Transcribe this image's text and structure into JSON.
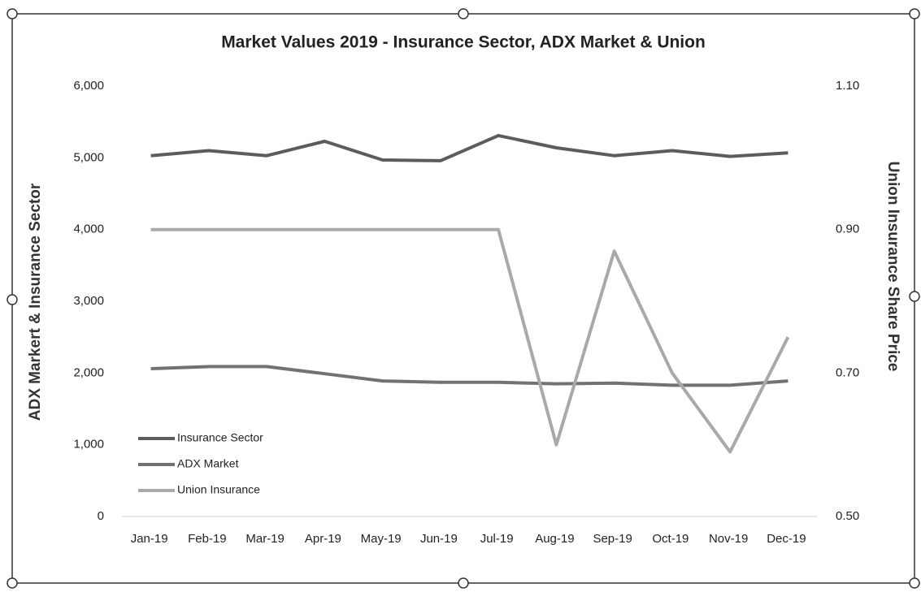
{
  "chart_data": {
    "type": "line",
    "title": "Market Values 2019 - Insurance Sector, ADX Market & Union",
    "y_label": "ADX Markert & Insurance Sector",
    "y2_label": "Union Insurance Share Price",
    "categories": [
      "Jan-19",
      "Feb-19",
      "Mar-19",
      "Apr-19",
      "May-19",
      "Jun-19",
      "Jul-19",
      "Aug-19",
      "Sep-19",
      "Oct-19",
      "Nov-19",
      "Dec-19"
    ],
    "series": [
      {
        "name": "Insurance Sector",
        "color": "#5c5c5c",
        "values": [
          5030,
          5100,
          5030,
          5230,
          4970,
          4960,
          5310,
          5140,
          5030,
          5100,
          5020,
          5070
        ]
      },
      {
        "name": "ADX Market",
        "color": "#727272",
        "values": [
          2060,
          2090,
          2090,
          1990,
          1890,
          1870,
          1870,
          1850,
          1860,
          1830,
          1830,
          1890
        ]
      },
      {
        "name": "Union Insurance",
        "color": "#a9a9a9",
        "axis": "y2",
        "values": [
          0.9,
          0.9,
          0.9,
          0.9,
          0.9,
          0.9,
          0.9,
          0.6,
          0.87,
          0.7,
          0.59,
          0.75
        ]
      }
    ],
    "ylim": [
      0,
      6000
    ],
    "yticks": [
      0,
      {
        "value": 1000,
        "label": "1,000"
      },
      {
        "value": 2000,
        "label": "2,000"
      },
      {
        "value": 3000,
        "label": "3,000"
      },
      {
        "value": 4000,
        "label": "4,000"
      },
      {
        "value": 5000,
        "label": "5,000"
      },
      {
        "value": 6000,
        "label": "6,000"
      }
    ],
    "y2lim": [
      0.5,
      1.1
    ],
    "y2ticks": [
      {
        "value": 0.5,
        "label": "0.50"
      },
      {
        "value": 0.7,
        "label": "0.70"
      },
      {
        "value": 0.9,
        "label": "0.90"
      },
      {
        "value": 1.1,
        "label": "1.10"
      }
    ],
    "grid": false,
    "legend": "lower left"
  }
}
